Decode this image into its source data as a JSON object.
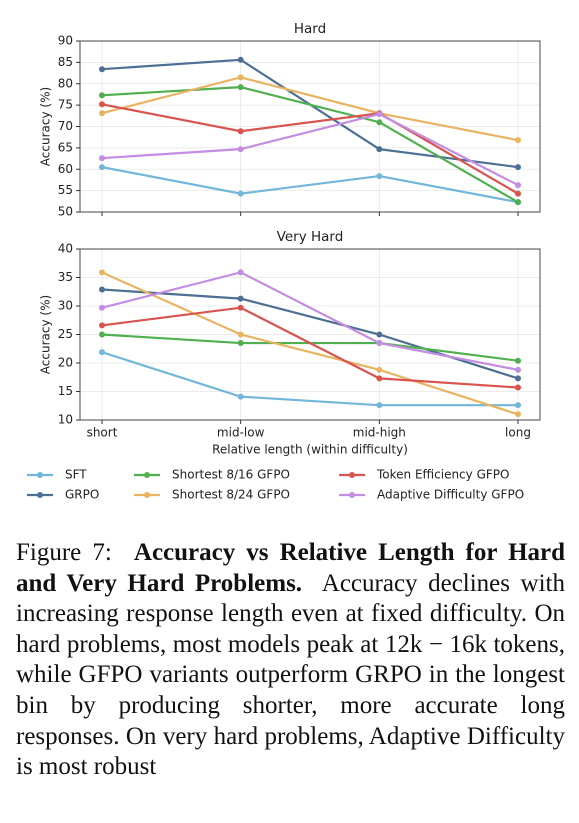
{
  "chart_data": [
    {
      "type": "line",
      "title": "Hard",
      "ylabel": "Accuracy (%)",
      "categories": [
        null,
        null,
        null,
        null
      ],
      "ylim": [
        50,
        90
      ],
      "yticks": [
        50,
        55,
        60,
        65,
        70,
        75,
        80,
        85,
        90
      ],
      "grid": true,
      "series": [
        {
          "color": "#72b6d9",
          "values": [
            60.5,
            54.3,
            58.4,
            52.3
          ]
        },
        {
          "color": "#4c6f93",
          "values": [
            83.4,
            85.6,
            64.7,
            60.5
          ]
        },
        {
          "color": "#50b04f",
          "values": [
            77.3,
            79.2,
            71.0,
            52.3
          ]
        },
        {
          "color": "#e9b462",
          "values": [
            73.1,
            81.5,
            73.1,
            66.8
          ]
        },
        {
          "color": "#d9534f",
          "values": [
            75.2,
            68.9,
            73.1,
            54.3
          ]
        },
        {
          "color": "#c48de2",
          "values": [
            62.6,
            64.7,
            72.9,
            56.3
          ]
        }
      ]
    },
    {
      "type": "line",
      "title": "Very Hard",
      "ylabel": "Accuracy (%)",
      "xlabel": "Relative length (within difficulty)",
      "categories": [
        "short",
        "mid-low",
        "mid-high",
        "long"
      ],
      "ylim": [
        10,
        40
      ],
      "yticks": [
        10,
        15,
        20,
        25,
        30,
        35,
        40
      ],
      "grid": true,
      "series": [
        {
          "name": "SFT",
          "color": "#72b6d9",
          "values": [
            21.9,
            14.1,
            12.6,
            12.6
          ]
        },
        {
          "name": "GRPO",
          "color": "#4c6f93",
          "values": [
            32.9,
            31.3,
            25.0,
            17.3
          ]
        },
        {
          "name": "Shortest 8/16 GFPO",
          "color": "#50b04f",
          "values": [
            25.0,
            23.5,
            23.5,
            20.4
          ]
        },
        {
          "name": "Shortest 8/24 GFPO",
          "color": "#e9b462",
          "values": [
            35.9,
            25.0,
            18.8,
            11.0
          ]
        },
        {
          "name": "Token Efficiency GFPO",
          "color": "#d9534f",
          "values": [
            26.6,
            29.7,
            17.3,
            15.7
          ]
        },
        {
          "name": "Adaptive Difficulty GFPO",
          "color": "#c48de2",
          "values": [
            29.7,
            35.9,
            23.5,
            18.8
          ]
        }
      ]
    }
  ],
  "caption": {
    "label": "Figure 7:",
    "title": "Accuracy vs Relative Length for Hard and Very Hard Problems.",
    "text": "Accuracy declines with increasing response length even at fixed difficulty. On hard problems, most models peak at 12k − 16k tokens, while GFPO variants outperform GRPO in the longest bin by producing shorter, more accurate long responses. On very hard problems, Adaptive Difficulty is most robust"
  }
}
